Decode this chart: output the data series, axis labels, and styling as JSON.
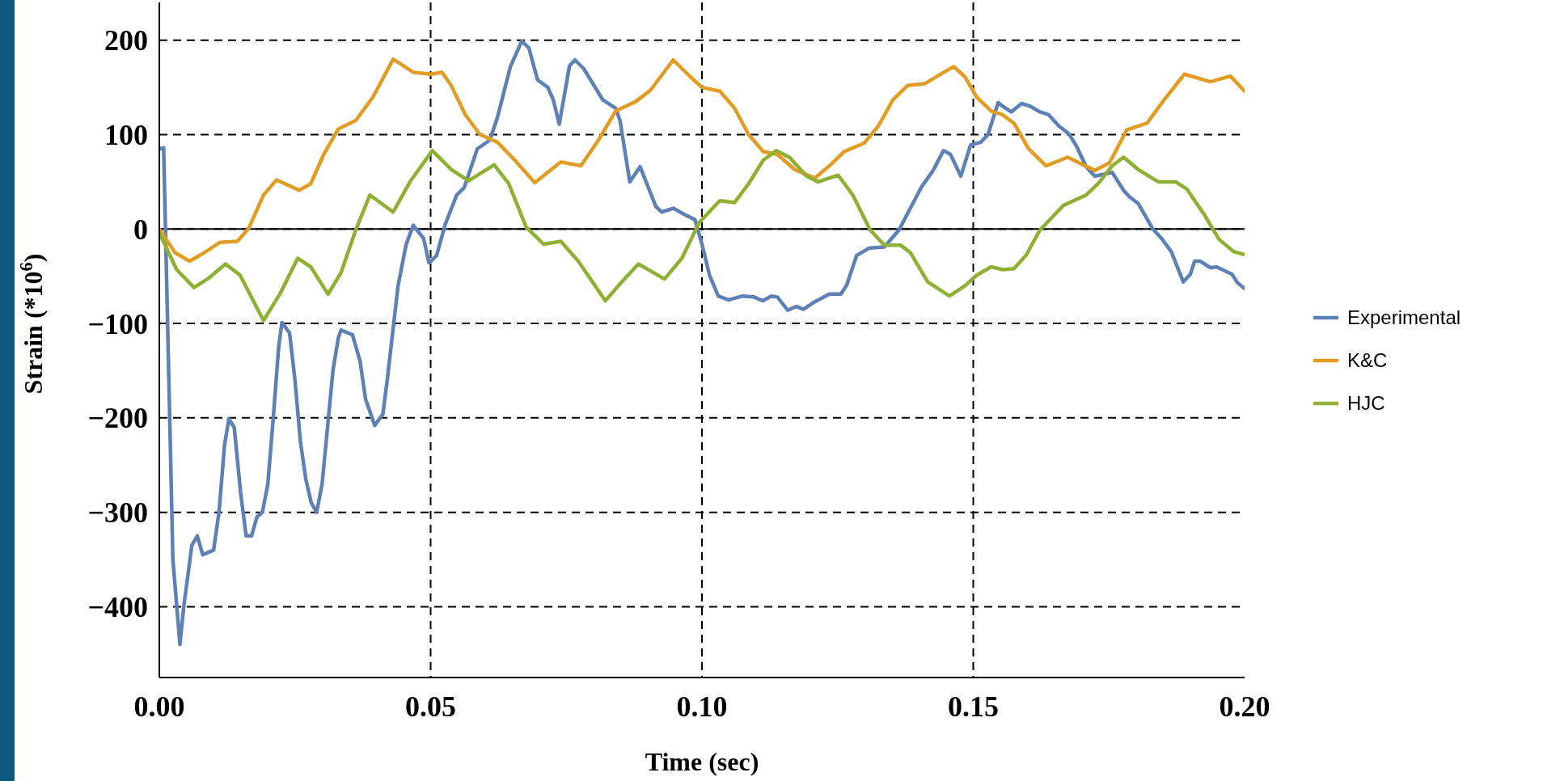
{
  "chart_data": {
    "type": "line",
    "xlabel": "Time (sec)",
    "ylabel": "Strain (*10$^{6}$)",
    "xlim": [
      0,
      0.2
    ],
    "ylim": [
      -475,
      240
    ],
    "xticks": [
      {
        "value": 0,
        "label": "0.00"
      },
      {
        "value": 0.05,
        "label": "0.05"
      },
      {
        "value": 0.1,
        "label": "0.10"
      },
      {
        "value": 0.15,
        "label": "0.15"
      },
      {
        "value": 0.2,
        "label": "0.20"
      }
    ],
    "yticks": [
      {
        "value": -400,
        "label": "−400"
      },
      {
        "value": -300,
        "label": "−300"
      },
      {
        "value": -200,
        "label": "−200"
      },
      {
        "value": -100,
        "label": "−100"
      },
      0,
      100,
      200
    ],
    "grid": true,
    "legend": "right",
    "line_style": "solid",
    "marker": "none",
    "ref_lines": [
      {
        "axis": "y",
        "value": 0,
        "color": "#000000",
        "line_style": "solid"
      }
    ],
    "series": [
      {
        "name": "Experimental",
        "color": "#5e81b5",
        "x": [
          0,
          0.0008,
          0.0025,
          0.0038,
          0.0045,
          0.006,
          0.007,
          0.008,
          0.01,
          0.011,
          0.012,
          0.0128,
          0.0138,
          0.015,
          0.016,
          0.017,
          0.018,
          0.019,
          0.02,
          0.021,
          0.022,
          0.0226,
          0.024,
          0.025,
          0.026,
          0.027,
          0.028,
          0.029,
          0.03,
          0.031,
          0.032,
          0.033,
          0.0335,
          0.0356,
          0.037,
          0.038,
          0.0397,
          0.0412,
          0.042,
          0.043,
          0.044,
          0.0455,
          0.0468,
          0.0487,
          0.0497,
          0.0511,
          0.0527,
          0.0548,
          0.0562,
          0.0586,
          0.0609,
          0.0623,
          0.0647,
          0.0668,
          0.0681,
          0.0697,
          0.0716,
          0.0726,
          0.0737,
          0.0756,
          0.0766,
          0.0782,
          0.0817,
          0.0841,
          0.0849,
          0.0867,
          0.0886,
          0.0915,
          0.0926,
          0.0947,
          0.0969,
          0.0987,
          0.1,
          0.1014,
          0.103,
          0.1049,
          0.1075,
          0.1096,
          0.1112,
          0.1128,
          0.1139,
          0.1158,
          0.1174,
          0.1187,
          0.1208,
          0.1235,
          0.1256,
          0.1267,
          0.1285,
          0.1309,
          0.1336,
          0.1363,
          0.1405,
          0.1426,
          0.1445,
          0.1458,
          0.1477,
          0.1495,
          0.1514,
          0.1527,
          0.1546,
          0.1554,
          0.157,
          0.1589,
          0.1605,
          0.1623,
          0.1639,
          0.1658,
          0.1676,
          0.169,
          0.1708,
          0.1724,
          0.1756,
          0.1777,
          0.1788,
          0.1804,
          0.1831,
          0.1847,
          0.1865,
          0.1887,
          0.19,
          0.1908,
          0.1918,
          0.1937,
          0.1948,
          0.1977,
          0.1987,
          0.2
        ],
        "values": [
          85,
          86,
          -350,
          -440,
          -400,
          -335,
          -325,
          -345,
          -340,
          -300,
          -230,
          -201,
          -210,
          -280,
          -325,
          -325,
          -305,
          -300,
          -270,
          -200,
          -125,
          -99,
          -110,
          -160,
          -225,
          -265,
          -290,
          -300,
          -270,
          -210,
          -150,
          -115,
          -107,
          -112,
          -140,
          -180,
          -208,
          -196,
          -160,
          -110,
          -60,
          -16,
          4,
          -10,
          -36,
          -28,
          5,
          36,
          44,
          85,
          94,
          118,
          172,
          199,
          192,
          158,
          150,
          137,
          111,
          173,
          179,
          170,
          137,
          128,
          115,
          50,
          66,
          24,
          18,
          22,
          15,
          10,
          -16,
          -49,
          -71,
          -75,
          -71,
          -72,
          -76,
          -71,
          -72,
          -86,
          -82,
          -85,
          -77,
          -69,
          -69,
          -59,
          -28,
          -20,
          -19,
          -1,
          45,
          62,
          83,
          79,
          56,
          89,
          92,
          100,
          134,
          130,
          124,
          133,
          130,
          124,
          121,
          109,
          101,
          88,
          66,
          56,
          60,
          41,
          34,
          27,
          0,
          -10,
          -24,
          -56,
          -48,
          -34,
          -34,
          -41,
          -40,
          -48,
          -57,
          -63
        ]
      },
      {
        "name": "K&C",
        "color": "#e19c24",
        "x": [
          0,
          0.0029,
          0.0056,
          0.0083,
          0.0112,
          0.0144,
          0.0165,
          0.0192,
          0.0216,
          0.0258,
          0.0279,
          0.0303,
          0.033,
          0.0362,
          0.0394,
          0.0431,
          0.0468,
          0.05,
          0.0521,
          0.0538,
          0.0564,
          0.0591,
          0.0623,
          0.0655,
          0.0692,
          0.074,
          0.0777,
          0.0809,
          0.0841,
          0.0878,
          0.0905,
          0.0947,
          0.0979,
          0.1,
          0.1033,
          0.106,
          0.1086,
          0.1113,
          0.1139,
          0.1171,
          0.1208,
          0.1235,
          0.1262,
          0.1299,
          0.1325,
          0.1352,
          0.1379,
          0.1411,
          0.1437,
          0.1464,
          0.1485,
          0.1506,
          0.1533,
          0.1554,
          0.1575,
          0.1602,
          0.1634,
          0.1674,
          0.1724,
          0.1751,
          0.1783,
          0.182,
          0.1852,
          0.1889,
          0.1937,
          0.1974,
          0.2
        ],
        "values": [
          0,
          -25,
          -34,
          -25,
          -14,
          -13,
          1,
          36,
          52,
          41,
          48,
          79,
          106,
          115,
          140,
          180,
          166,
          164,
          166,
          152,
          121,
          100,
          92,
          73,
          49,
          71,
          67,
          94,
          125,
          135,
          147,
          179,
          161,
          150,
          146,
          128,
          100,
          82,
          79,
          63,
          54,
          67,
          82,
          91,
          109,
          137,
          152,
          154,
          163,
          172,
          161,
          140,
          125,
          121,
          112,
          85,
          67,
          76,
          62,
          70,
          105,
          112,
          137,
          164,
          156,
          162,
          146
        ]
      },
      {
        "name": "HJC",
        "color": "#8fb032",
        "x": [
          0,
          0.0032,
          0.0064,
          0.0091,
          0.0122,
          0.0149,
          0.0192,
          0.0223,
          0.0255,
          0.0279,
          0.0311,
          0.0335,
          0.0362,
          0.0388,
          0.0431,
          0.0463,
          0.0503,
          0.0538,
          0.057,
          0.0617,
          0.0644,
          0.0676,
          0.0708,
          0.074,
          0.0772,
          0.0822,
          0.0852,
          0.0883,
          0.0931,
          0.0963,
          0.0995,
          0.1033,
          0.106,
          0.1086,
          0.1113,
          0.1137,
          0.1161,
          0.1193,
          0.1214,
          0.1251,
          0.1278,
          0.131,
          0.1336,
          0.1366,
          0.1384,
          0.1416,
          0.1456,
          0.1485,
          0.1506,
          0.1533,
          0.1554,
          0.1575,
          0.1597,
          0.1623,
          0.1666,
          0.1708,
          0.173,
          0.1756,
          0.1777,
          0.1804,
          0.1841,
          0.1873,
          0.1894,
          0.1926,
          0.1953,
          0.198,
          0.2
        ],
        "values": [
          -4,
          -43,
          -62,
          -52,
          -37,
          -49,
          -97,
          -68,
          -31,
          -40,
          -69,
          -46,
          -1,
          36,
          18,
          51,
          83,
          63,
          51,
          68,
          48,
          2,
          -16,
          -13,
          -34,
          -76,
          -56,
          -37,
          -53,
          -31,
          7,
          30,
          28,
          48,
          73,
          83,
          76,
          56,
          50,
          57,
          36,
          -1,
          -17,
          -17,
          -25,
          -56,
          -71,
          -60,
          -49,
          -40,
          -43,
          -42,
          -28,
          -1,
          25,
          36,
          48,
          67,
          76,
          63,
          50,
          50,
          42,
          15,
          -11,
          -24,
          -27
        ]
      }
    ]
  }
}
